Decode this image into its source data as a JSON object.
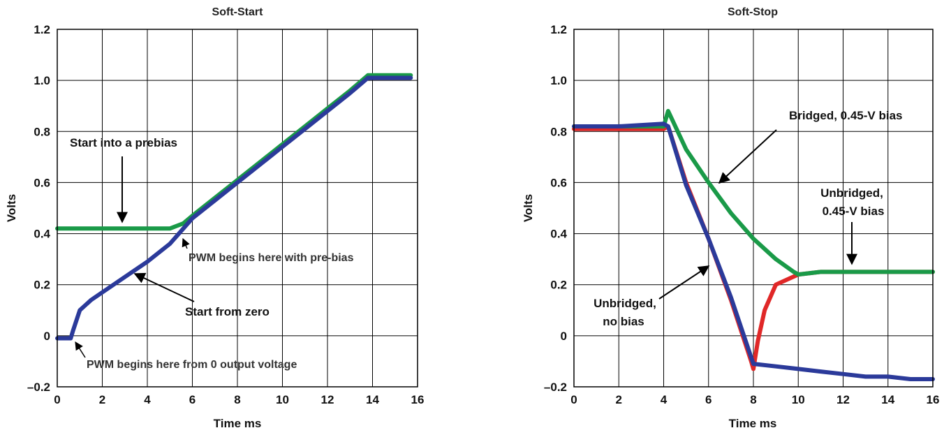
{
  "chart_data": [
    {
      "type": "line",
      "title": "Soft-Start",
      "xlabel": "Time  ms",
      "ylabel": "Volts",
      "xlim": [
        0,
        16
      ],
      "ylim": [
        -0.2,
        1.2
      ],
      "xticks": [
        "0",
        "2",
        "4",
        "6",
        "8",
        "10",
        "12",
        "14",
        "16"
      ],
      "yticks": [
        "–0.2",
        "0",
        "0.2",
        "0.4",
        "0.6",
        "0.8",
        "1.0",
        "1.2"
      ],
      "grid": true,
      "series": [
        {
          "color": "#1a9a48",
          "x": [
            0,
            1,
            2,
            3,
            4,
            5,
            5.6,
            6,
            7,
            8,
            9,
            10,
            11,
            12,
            13,
            13.8,
            14,
            15,
            15.7
          ],
          "y": [
            0.42,
            0.42,
            0.42,
            0.42,
            0.42,
            0.42,
            0.44,
            0.47,
            0.54,
            0.61,
            0.68,
            0.75,
            0.82,
            0.89,
            0.96,
            1.02,
            1.02,
            1.02,
            1.02
          ]
        },
        {
          "color": "#2b3a9a",
          "x": [
            0,
            0.6,
            0.7,
            1,
            1.5,
            2,
            3,
            4,
            5,
            6,
            7,
            8,
            9,
            10,
            11,
            12,
            13,
            13.8,
            14,
            15,
            15.7
          ],
          "y": [
            -0.01,
            -0.01,
            0.02,
            0.1,
            0.14,
            0.17,
            0.23,
            0.29,
            0.36,
            0.46,
            0.53,
            0.6,
            0.67,
            0.74,
            0.81,
            0.88,
            0.95,
            1.01,
            1.01,
            1.01,
            1.01
          ]
        }
      ],
      "annotations": {
        "prebias": "Start into a prebias",
        "pwm_prebias": "PWM begins here with pre-bias",
        "zero": "Start from zero",
        "pwm_zero": "PWM begins here from 0 output voltage"
      }
    },
    {
      "type": "line",
      "title": "Soft-Stop",
      "xlabel": "Time  ms",
      "ylabel": "Volts",
      "xlim": [
        0,
        16
      ],
      "ylim": [
        -0.2,
        1.2
      ],
      "xticks": [
        "0",
        "2",
        "4",
        "6",
        "8",
        "10",
        "12",
        "14",
        "16"
      ],
      "yticks": [
        "–0.2",
        "0",
        "0.2",
        "0.4",
        "0.6",
        "0.8",
        "1.0",
        "1.2"
      ],
      "grid": true,
      "series": [
        {
          "color": "#e02828",
          "x": [
            0,
            2,
            4,
            4.2,
            5,
            6,
            7,
            7.9,
            8.0,
            8.2,
            8.5,
            9,
            10,
            11,
            12,
            13,
            14,
            15,
            16
          ],
          "y": [
            0.81,
            0.81,
            0.81,
            0.82,
            0.6,
            0.38,
            0.14,
            -0.1,
            -0.13,
            -0.02,
            0.1,
            0.2,
            0.24,
            0.25,
            0.25,
            0.25,
            0.25,
            0.25,
            0.25
          ]
        },
        {
          "color": "#1a9a48",
          "x": [
            0,
            2,
            4,
            4.2,
            5,
            6,
            7,
            8,
            9,
            9.8,
            10,
            11,
            12,
            13,
            14,
            15,
            16
          ],
          "y": [
            0.82,
            0.82,
            0.82,
            0.88,
            0.73,
            0.6,
            0.48,
            0.38,
            0.3,
            0.25,
            0.24,
            0.25,
            0.25,
            0.25,
            0.25,
            0.25,
            0.25
          ]
        },
        {
          "color": "#2b3a9a",
          "x": [
            0,
            2,
            4,
            4.2,
            5,
            6,
            7,
            7.5,
            8,
            9,
            10,
            11,
            12,
            13,
            14,
            15,
            16
          ],
          "y": [
            0.82,
            0.82,
            0.83,
            0.82,
            0.59,
            0.38,
            0.15,
            0.02,
            -0.11,
            -0.12,
            -0.13,
            -0.14,
            -0.15,
            -0.16,
            -0.16,
            -0.17,
            -0.17
          ]
        }
      ],
      "annotations": {
        "bridged": "Bridged, 0.45-V bias",
        "unbridged_bias_1": "Unbridged,",
        "unbridged_bias_2": "0.45-V bias",
        "unbridged_nobias_1": "Unbridged,",
        "unbridged_nobias_2": "no bias"
      }
    }
  ]
}
